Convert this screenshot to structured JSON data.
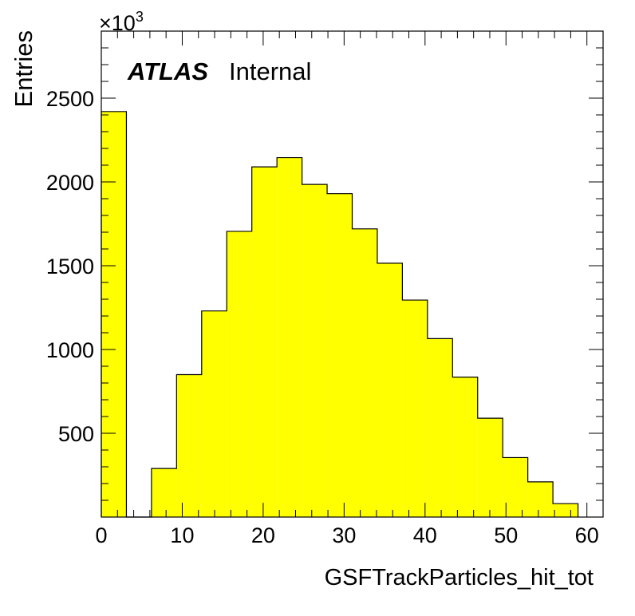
{
  "chart_data": {
    "type": "bar",
    "style": "histogram",
    "fill_color": "#ffff00",
    "edge_color": "#000000",
    "xlabel": "GSFTrackParticles_hit_tot",
    "ylabel": "Entries",
    "y_multiplier_label": "×10",
    "y_multiplier_exponent": "3",
    "atlas_label": "ATLAS",
    "atlas_status": "Internal",
    "xlim": [
      0,
      62
    ],
    "ylim": [
      0,
      2900
    ],
    "x_ticks": [
      "0",
      "10",
      "20",
      "30",
      "40",
      "50",
      "60"
    ],
    "y_ticks": [
      "500",
      "1000",
      "1500",
      "2000",
      "2500"
    ],
    "bin_edges": [
      0,
      3.1,
      6.2,
      9.3,
      12.4,
      15.5,
      18.6,
      21.7,
      24.8,
      27.9,
      31.0,
      34.1,
      37.2,
      40.3,
      43.4,
      46.5,
      49.6,
      52.7,
      55.8,
      58.9
    ],
    "values": [
      2420,
      0,
      290,
      850,
      1230,
      1705,
      2090,
      2145,
      1985,
      1930,
      1720,
      1515,
      1295,
      1065,
      835,
      590,
      355,
      210,
      80
    ]
  }
}
